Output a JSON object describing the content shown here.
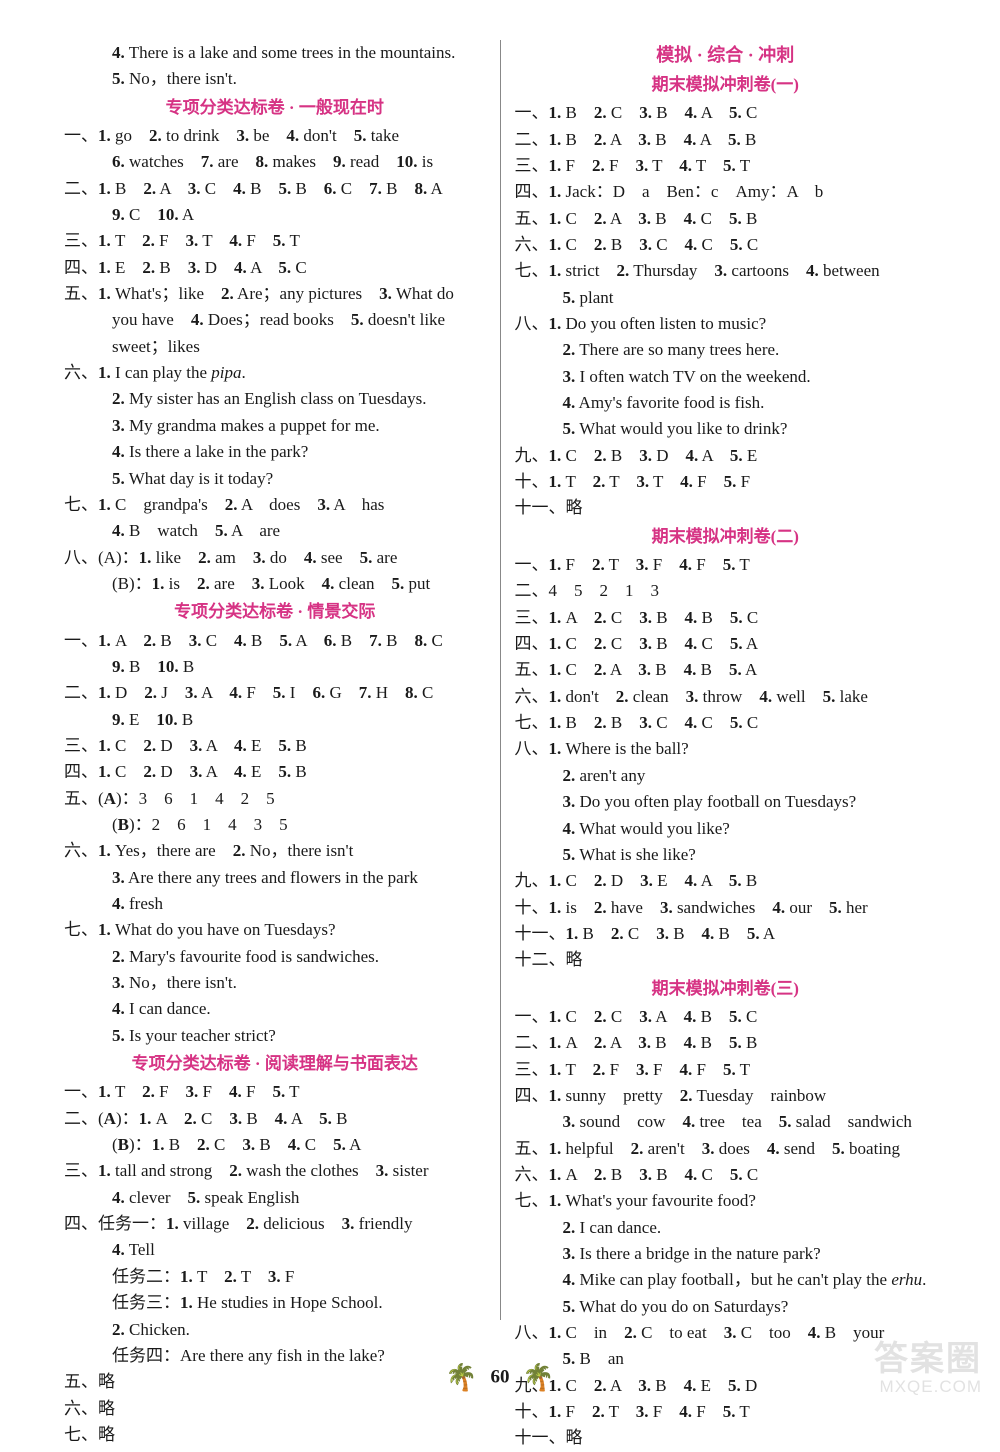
{
  "pageNumber": "60",
  "palmGlyph": "🌴",
  "watermark": {
    "top": "答案圈",
    "bottom": "MXQE.COM"
  },
  "colors": {
    "heading": "#d63384",
    "text": "#1a1a1a",
    "divider": "#888",
    "palm": "#e898c8",
    "watermark": "#cfcfcf"
  },
  "left": {
    "preLines": [
      "　　<b>4.</b> There is a lake and some trees in the mountains.",
      "　　<b>5.</b> No，there isn't."
    ],
    "sec1": {
      "title": "专项分类达标卷 · 一般现在时",
      "lines": [
        "一、<b>1.</b> go　<b>2.</b> to drink　<b>3.</b> be　<b>4.</b> don't　<b>5.</b> take",
        "　　<b>6.</b> watches　<b>7.</b> are　<b>8.</b> makes　<b>9.</b> read　<b>10.</b> is",
        "二、<b>1.</b> B　<b>2.</b> A　<b>3.</b> C　<b>4.</b> B　<b>5.</b> B　<b>6.</b> C　<b>7.</b> B　<b>8.</b> A",
        "　　<b>9.</b> C　<b>10.</b> A",
        "三、<b>1.</b> T　<b>2.</b> F　<b>3.</b> T　<b>4.</b> F　<b>5.</b> T",
        "四、<b>1.</b> E　<b>2.</b> B　<b>3.</b> D　<b>4.</b> A　<b>5.</b> C",
        "五、<b>1.</b> What's；like　<b>2.</b> Are；any pictures　<b>3.</b> What do",
        "　　you have　<b>4.</b> Does；read books　<b>5.</b> doesn't like",
        "　　sweet；likes",
        "六、<b>1.</b> I can play the <em class='it'>pipa</em>.",
        "　　<b>2.</b> My sister has an English class on Tuesdays.",
        "　　<b>3.</b> My grandma makes a puppet for me.",
        "　　<b>4.</b> Is there a lake in the park?",
        "　　<b>5.</b> What day is it today?",
        "七、<b>1.</b> C　grandpa's　<b>2.</b> A　does　<b>3.</b> A　has",
        "　　<b>4.</b> B　watch　<b>5.</b> A　are",
        "八、(A)：<b>1.</b> like　<b>2.</b> am　<b>3.</b> do　<b>4.</b> see　<b>5.</b> are",
        "　　(B)：<b>1.</b> is　<b>2.</b> are　<b>3.</b> Look　<b>4.</b> clean　<b>5.</b> put"
      ]
    },
    "sec2": {
      "title": "专项分类达标卷 · 情景交际",
      "lines": [
        "一、<b>1.</b> A　<b>2.</b> B　<b>3.</b> C　<b>4.</b> B　<b>5.</b> A　<b>6.</b> B　<b>7.</b> B　<b>8.</b> C",
        "　　<b>9.</b> B　<b>10.</b> B",
        "二、<b>1.</b> D　<b>2.</b> J　<b>3.</b> A　<b>4.</b> F　<b>5.</b> I　<b>6.</b> G　<b>7.</b> H　<b>8.</b> C",
        "　　<b>9.</b> E　<b>10.</b> B",
        "三、<b>1.</b> C　<b>2.</b> D　<b>3.</b> A　<b>4.</b> E　<b>5.</b> B",
        "四、<b>1.</b> C　<b>2.</b> D　<b>3.</b> A　<b>4.</b> E　<b>5.</b> B",
        "五、(<b>A</b>)：3　6　1　4　2　5",
        "　　(<b>B</b>)：2　6　1　4　3　5",
        "六、<b>1.</b> Yes，there are　<b>2.</b> No，there isn't",
        "　　<b>3.</b> Are there any trees and flowers in the park",
        "　　<b>4.</b> fresh",
        "七、<b>1.</b> What do you have on Tuesdays?",
        "　　<b>2.</b> Mary's favourite food is sandwiches.",
        "　　<b>3.</b> No，there isn't.",
        "　　<b>4.</b> I can dance.",
        "　　<b>5.</b> Is your teacher strict?"
      ]
    },
    "sec3": {
      "title": "专项分类达标卷 · 阅读理解与书面表达",
      "lines": [
        "一、<b>1.</b> T　<b>2.</b> F　<b>3.</b> F　<b>4.</b> F　<b>5.</b> T",
        "二、(<b>A</b>)：<b>1.</b> A　<b>2.</b> C　<b>3.</b> B　<b>4.</b> A　<b>5.</b> B",
        "　　(<b>B</b>)：<b>1.</b> B　<b>2.</b> C　<b>3.</b> B　<b>4.</b> C　<b>5.</b> A",
        "三、<b>1.</b> tall and strong　<b>2.</b> wash the clothes　<b>3.</b> sister",
        "　　<b>4.</b> clever　<b>5.</b> speak English",
        "四、任务一：<b>1.</b> village　<b>2.</b> delicious　<b>3.</b> friendly",
        "　　<b>4.</b> Tell",
        "　　任务二：<b>1.</b> T　<b>2.</b> T　<b>3.</b> F",
        "　　任务三：<b>1.</b> He studies in Hope School.",
        "　　　　　　<b>2.</b> Chicken.",
        "　　任务四：Are there any fish in the lake?",
        "五、略",
        "六、略",
        "七、略"
      ]
    }
  },
  "right": {
    "mainTitle": "模拟 · 综合 · 冲刺",
    "sec1": {
      "title": "期末模拟冲刺卷(一)",
      "lines": [
        "一、<b>1.</b> B　<b>2.</b> C　<b>3.</b> B　<b>4.</b> A　<b>5.</b> C",
        "二、<b>1.</b> B　<b>2.</b> A　<b>3.</b> B　<b>4.</b> A　<b>5.</b> B",
        "三、<b>1.</b> F　<b>2.</b> F　<b>3.</b> T　<b>4.</b> T　<b>5.</b> T",
        "四、<b>1.</b> Jack：D　a　Ben：c　Amy：A　b",
        "五、<b>1.</b> C　<b>2.</b> A　<b>3.</b> B　<b>4.</b> C　<b>5.</b> B",
        "六、<b>1.</b> C　<b>2.</b> B　<b>3.</b> C　<b>4.</b> C　<b>5.</b> C",
        "七、<b>1.</b> strict　<b>2.</b> Thursday　<b>3.</b> cartoons　<b>4.</b> between",
        "　　<b>5.</b> plant",
        "八、<b>1.</b> Do you often listen to music?",
        "　　<b>2.</b> There are so many trees here.",
        "　　<b>3.</b> I often watch TV on the weekend.",
        "　　<b>4.</b> Amy's favorite food is fish.",
        "　　<b>5.</b> What would you like to drink?",
        "九、<b>1.</b> C　<b>2.</b> B　<b>3.</b> D　<b>4.</b> A　<b>5.</b> E",
        "十、<b>1.</b> T　<b>2.</b> T　<b>3.</b> T　<b>4.</b> F　<b>5.</b> F",
        "十一、略"
      ]
    },
    "sec2": {
      "title": "期末模拟冲刺卷(二)",
      "lines": [
        "一、<b>1.</b> F　<b>2.</b> T　<b>3.</b> F　<b>4.</b> F　<b>5.</b> T",
        "二、4　5　2　1　3",
        "三、<b>1.</b> A　<b>2.</b> C　<b>3.</b> B　<b>4.</b> B　<b>5.</b> C",
        "四、<b>1.</b> C　<b>2.</b> C　<b>3.</b> B　<b>4.</b> C　<b>5.</b> A",
        "五、<b>1.</b> C　<b>2.</b> A　<b>3.</b> B　<b>4.</b> B　<b>5.</b> A",
        "六、<b>1.</b> don't　<b>2.</b> clean　<b>3.</b> throw　<b>4.</b> well　<b>5.</b> lake",
        "七、<b>1.</b> B　<b>2.</b> B　<b>3.</b> C　<b>4.</b> C　<b>5.</b> C",
        "八、<b>1.</b> Where is the ball?",
        "　　<b>2.</b> aren't any",
        "　　<b>3.</b> Do you often play football on Tuesdays?",
        "　　<b>4.</b> What would you like?",
        "　　<b>5.</b> What is she like?",
        "九、<b>1.</b> C　<b>2.</b> D　<b>3.</b> E　<b>4.</b> A　<b>5.</b> B",
        "十、<b>1.</b> is　<b>2.</b> have　<b>3.</b> sandwiches　<b>4.</b> our　<b>5.</b> her",
        "十一、<b>1.</b> B　<b>2.</b> C　<b>3.</b> B　<b>4.</b> B　<b>5.</b> A",
        "十二、略"
      ]
    },
    "sec3": {
      "title": "期末模拟冲刺卷(三)",
      "lines": [
        "一、<b>1.</b> C　<b>2.</b> C　<b>3.</b> A　<b>4.</b> B　<b>5.</b> C",
        "二、<b>1.</b> A　<b>2.</b> A　<b>3.</b> B　<b>4.</b> B　<b>5.</b> B",
        "三、<b>1.</b> T　<b>2.</b> F　<b>3.</b> F　<b>4.</b> F　<b>5.</b> T",
        "四、<b>1.</b> sunny　pretty　<b>2.</b> Tuesday　rainbow",
        "　　<b>3.</b> sound　cow　<b>4.</b> tree　tea　<b>5.</b> salad　sandwich",
        "五、<b>1.</b> helpful　<b>2.</b> aren't　<b>3.</b> does　<b>4.</b> send　<b>5.</b> boating",
        "六、<b>1.</b> A　<b>2.</b> B　<b>3.</b> B　<b>4.</b> C　<b>5.</b> C",
        "七、<b>1.</b> What's your favourite food?",
        "　　<b>2.</b> I can dance.",
        "　　<b>3.</b> Is there a bridge in the nature park?",
        "　　<b>4.</b> Mike can play football，but he can't play the <em class='it'>erhu</em>.",
        "　　<b>5.</b> What do you do on Saturdays?",
        "八、<b>1.</b> C　in　<b>2.</b> C　to eat　<b>3.</b> C　too　<b>4.</b> B　your",
        "　　<b>5.</b> B　an",
        "九、<b>1.</b> C　<b>2.</b> A　<b>3.</b> B　<b>4.</b> E　<b>5.</b> D",
        "十、<b>1.</b> F　<b>2.</b> T　<b>3.</b> F　<b>4.</b> F　<b>5.</b> T",
        "十一、略"
      ]
    }
  }
}
